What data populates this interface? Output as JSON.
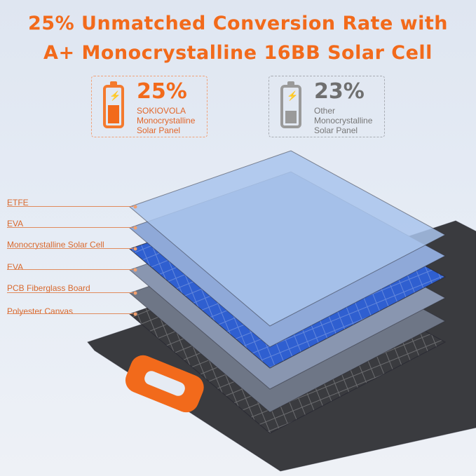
{
  "headline": {
    "line1": "25% Unmatched Conversion Rate with",
    "line2": "A+ Monocrystalline 16BB Solar Cell"
  },
  "comparison": [
    {
      "percent": "25%",
      "lines": [
        "SOKIOVOLA",
        "Monocrystalline",
        "Solar Panel"
      ],
      "color": "#f26a1b",
      "battery_level": 0.45
    },
    {
      "percent": "23%",
      "lines": [
        "Other",
        "Monocrystalline",
        "Solar Panel"
      ],
      "color": "#9a9a9a",
      "battery_level": 0.3
    }
  ],
  "layers": [
    {
      "label": "ETFE",
      "color": "#a9c4ec"
    },
    {
      "label": "EVA",
      "color": "#8fa9d8"
    },
    {
      "label": "Monocrystalline Solar Cell",
      "color": "#2f5fd0"
    },
    {
      "label": "EVA",
      "color": "#8996b0"
    },
    {
      "label": "PCB Fiberglass Board",
      "color": "#6e7686"
    },
    {
      "label": "Polyester Canvas",
      "color": "#3a3b3f"
    }
  ],
  "accent": "#f26a1b"
}
